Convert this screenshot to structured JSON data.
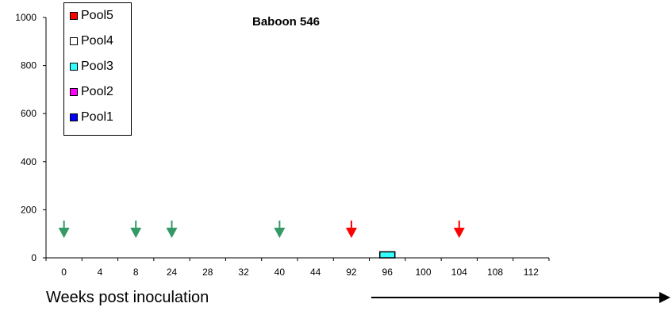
{
  "chart_data": {
    "type": "bar",
    "title": "Baboon 546",
    "xlabel": "Weeks post inoculation",
    "ylabel": "",
    "ylim": [
      0,
      1000
    ],
    "yticks": [
      0,
      200,
      400,
      600,
      800,
      1000
    ],
    "categories": [
      "0",
      "4",
      "8",
      "24",
      "28",
      "32",
      "40",
      "44",
      "92",
      "96",
      "100",
      "104",
      "108",
      "112"
    ],
    "series": [
      {
        "name": "Pool5",
        "color": "#ff0000",
        "values": [
          0,
          0,
          0,
          0,
          0,
          0,
          0,
          0,
          0,
          0,
          0,
          0,
          0,
          0
        ]
      },
      {
        "name": "Pool4",
        "color": "#ffffff",
        "values": [
          0,
          0,
          0,
          0,
          0,
          0,
          0,
          0,
          0,
          0,
          0,
          0,
          0,
          0
        ]
      },
      {
        "name": "Pool3",
        "color": "#33ffff",
        "values": [
          0,
          0,
          0,
          0,
          0,
          0,
          0,
          0,
          0,
          25,
          0,
          0,
          0,
          0
        ]
      },
      {
        "name": "Pool2",
        "color": "#ff00ff",
        "values": [
          0,
          0,
          0,
          0,
          0,
          0,
          0,
          0,
          0,
          0,
          0,
          0,
          0,
          0
        ]
      },
      {
        "name": "Pool1",
        "color": "#0000ff",
        "values": [
          0,
          0,
          0,
          0,
          0,
          0,
          0,
          0,
          0,
          0,
          0,
          0,
          0,
          0
        ]
      }
    ],
    "markers": [
      {
        "category": "0",
        "color": "#339966"
      },
      {
        "category": "8",
        "color": "#339966"
      },
      {
        "category": "24",
        "color": "#339966"
      },
      {
        "category": "40",
        "color": "#339966"
      },
      {
        "category": "92",
        "color": "#ff0000"
      },
      {
        "category": "104",
        "color": "#ff0000"
      }
    ],
    "legend": "top-left",
    "grid": false
  }
}
